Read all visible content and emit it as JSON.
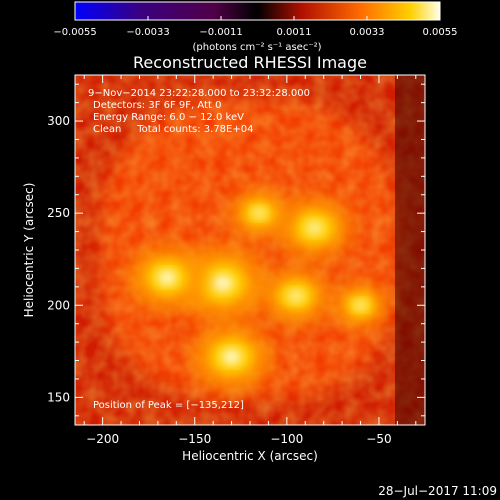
{
  "chart_data": {
    "type": "heatmap",
    "title": "Reconstructed RHESSI Image",
    "xlabel": "Heliocentric X (arcsec)",
    "ylabel": "Heliocentric Y (arcsec)",
    "xlim": [
      -215,
      -25
    ],
    "ylim": [
      135,
      325
    ],
    "xticks": [
      -200,
      -150,
      -100,
      -50
    ],
    "yticks": [
      150,
      200,
      250,
      300
    ],
    "xtick_labels": [
      "−200",
      "−150",
      "−100",
      "−50"
    ],
    "ytick_labels": [
      "150",
      "200",
      "250",
      "300"
    ],
    "colorbar": {
      "range": [
        -0.0055,
        0.0055
      ],
      "ticks": [
        -0.0055,
        -0.0033,
        -0.0011,
        0.0011,
        0.0033,
        0.0055
      ],
      "tick_labels": [
        "−0.0055",
        "−0.0033",
        "−0.0011",
        "0.0011",
        "0.0033",
        "0.0055"
      ],
      "label": "(photons cm⁻² s⁻¹ asec⁻²)"
    },
    "annotations": {
      "time_range": "9−Nov−2014 23:22:28.000 to 23:32:28.000",
      "detectors": "Detectors: 3F 6F 9F, Att 0",
      "energy_range": "Energy Range: 6.0 − 12.0 keV",
      "clean_counts": "Clean     Total counts: 3.78E+04",
      "peak": "Position of Peak = [−135,212]"
    },
    "sources": [
      {
        "x": -135,
        "y": 212,
        "intensity": 0.0055
      },
      {
        "x": -165,
        "y": 215,
        "intensity": 0.0048
      },
      {
        "x": -130,
        "y": 172,
        "intensity": 0.005
      },
      {
        "x": -85,
        "y": 242,
        "intensity": 0.0046
      },
      {
        "x": -95,
        "y": 205,
        "intensity": 0.0042
      },
      {
        "x": -115,
        "y": 250,
        "intensity": 0.0036
      },
      {
        "x": -60,
        "y": 200,
        "intensity": 0.0034
      }
    ],
    "peak": {
      "x": -135,
      "y": 212
    }
  },
  "footer": {
    "timestamp": "28−Jul−2017 11:09"
  }
}
